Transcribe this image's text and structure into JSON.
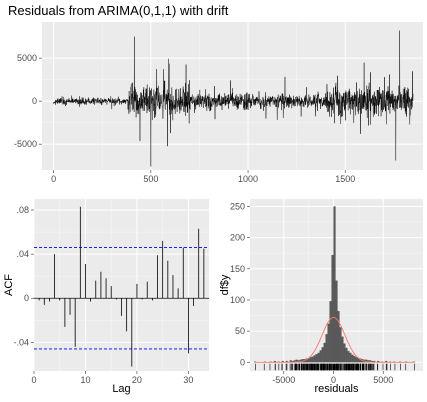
{
  "title": "Residuals from ARIMA(0,1,1) with drift",
  "chart_data": [
    {
      "type": "line",
      "panel": "residuals-time-series",
      "title": "Residuals from ARIMA(0,1,1) with drift",
      "xlabel": "",
      "ylabel": "",
      "xlim": [
        -60,
        1900
      ],
      "ylim": [
        -8000,
        9200
      ],
      "x_ticks": [
        0,
        500,
        1000,
        1500
      ],
      "y_ticks": [
        -5000,
        0,
        5000
      ],
      "n_points": 1850,
      "series_color": "#000000",
      "grid": true,
      "key_points": [
        {
          "x": 415,
          "y": 7500
        },
        {
          "x": 500,
          "y": -7600
        },
        {
          "x": 1780,
          "y": 8200
        },
        {
          "x": 1760,
          "y": -6900
        }
      ]
    },
    {
      "type": "bar",
      "panel": "acf",
      "xlabel": "Lag",
      "ylabel": "ACF",
      "xlim": [
        0,
        34
      ],
      "ylim": [
        -0.066,
        0.09
      ],
      "x_ticks": [
        0,
        10,
        20,
        30
      ],
      "y_ticks": [
        -0.04,
        0.0,
        0.04,
        0.08
      ],
      "confidence_bound": 0.046,
      "confidence_color": "#0000ff",
      "lags": [
        1,
        2,
        3,
        4,
        5,
        6,
        7,
        8,
        9,
        10,
        11,
        12,
        13,
        14,
        15,
        16,
        17,
        18,
        19,
        20,
        21,
        22,
        23,
        24,
        25,
        26,
        27,
        28,
        29,
        30,
        31,
        32,
        33
      ],
      "values": [
        -0.002,
        -0.006,
        -0.003,
        0.04,
        -0.002,
        -0.026,
        -0.015,
        -0.044,
        0.083,
        0.031,
        -0.003,
        0.016,
        0.024,
        0.018,
        0.011,
        -0.001,
        -0.016,
        -0.03,
        -0.062,
        0.013,
        -0.001,
        0.015,
        -0.002,
        0.039,
        0.052,
        0.034,
        0.021,
        0.009,
        0.046,
        -0.05,
        -0.007,
        0.063,
        0.045
      ]
    },
    {
      "type": "bar",
      "panel": "residual-histogram",
      "xlabel": "residuals",
      "ylabel": "df$y",
      "xlim": [
        -8400,
        9000
      ],
      "ylim": [
        -14,
        262
      ],
      "x_ticks": [
        -5000,
        0,
        5000
      ],
      "y_ticks": [
        0,
        50,
        100,
        150,
        200,
        250
      ],
      "bin_width": 200,
      "bin_start": -8000,
      "density_curve_color": "#f8766d",
      "rug": true,
      "bins": [
        {
          "x0": -8000,
          "count": 1
        },
        {
          "x0": -7000,
          "count": 1
        },
        {
          "x0": -6400,
          "count": 1
        },
        {
          "x0": -6000,
          "count": 2
        },
        {
          "x0": -5600,
          "count": 1
        },
        {
          "x0": -5200,
          "count": 2
        },
        {
          "x0": -4800,
          "count": 2
        },
        {
          "x0": -4400,
          "count": 3
        },
        {
          "x0": -4200,
          "count": 2
        },
        {
          "x0": -4000,
          "count": 3
        },
        {
          "x0": -3800,
          "count": 4
        },
        {
          "x0": -3600,
          "count": 3
        },
        {
          "x0": -3400,
          "count": 4
        },
        {
          "x0": -3200,
          "count": 5
        },
        {
          "x0": -3000,
          "count": 5
        },
        {
          "x0": -2800,
          "count": 6
        },
        {
          "x0": -2600,
          "count": 6
        },
        {
          "x0": -2400,
          "count": 8
        },
        {
          "x0": -2200,
          "count": 9
        },
        {
          "x0": -2000,
          "count": 11
        },
        {
          "x0": -1800,
          "count": 13
        },
        {
          "x0": -1600,
          "count": 15
        },
        {
          "x0": -1400,
          "count": 19
        },
        {
          "x0": -1200,
          "count": 24
        },
        {
          "x0": -1000,
          "count": 31
        },
        {
          "x0": -800,
          "count": 45
        },
        {
          "x0": -600,
          "count": 62
        },
        {
          "x0": -400,
          "count": 98
        },
        {
          "x0": -200,
          "count": 172
        },
        {
          "x0": 0,
          "count": 250
        },
        {
          "x0": 200,
          "count": 131
        },
        {
          "x0": 400,
          "count": 82
        },
        {
          "x0": 600,
          "count": 56
        },
        {
          "x0": 800,
          "count": 41
        },
        {
          "x0": 1000,
          "count": 30
        },
        {
          "x0": 1200,
          "count": 23
        },
        {
          "x0": 1400,
          "count": 18
        },
        {
          "x0": 1600,
          "count": 15
        },
        {
          "x0": 1800,
          "count": 12
        },
        {
          "x0": 2000,
          "count": 10
        },
        {
          "x0": 2200,
          "count": 8
        },
        {
          "x0": 2400,
          "count": 7
        },
        {
          "x0": 2600,
          "count": 6
        },
        {
          "x0": 2800,
          "count": 5
        },
        {
          "x0": 3000,
          "count": 4
        },
        {
          "x0": 3200,
          "count": 4
        },
        {
          "x0": 3400,
          "count": 3
        },
        {
          "x0": 3600,
          "count": 3
        },
        {
          "x0": 3800,
          "count": 2
        },
        {
          "x0": 4000,
          "count": 2
        },
        {
          "x0": 4400,
          "count": 2
        },
        {
          "x0": 4800,
          "count": 1
        },
        {
          "x0": 5200,
          "count": 2
        },
        {
          "x0": 5600,
          "count": 1
        },
        {
          "x0": 6000,
          "count": 1
        },
        {
          "x0": 6600,
          "count": 1
        },
        {
          "x0": 7200,
          "count": 1
        },
        {
          "x0": 8000,
          "count": 1
        }
      ]
    }
  ]
}
